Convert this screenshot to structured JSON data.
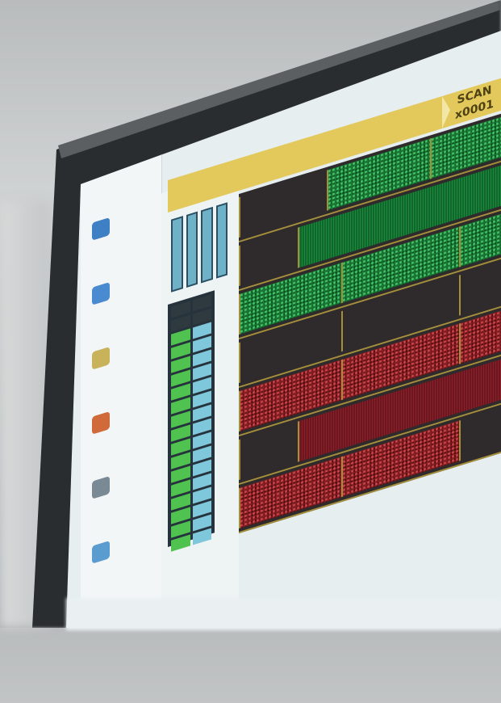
{
  "header": {
    "scan_label": "SCAN",
    "scan_id": "x0001"
  },
  "colors": {
    "header": "#e3c95c",
    "grid_line": "#a48f3c",
    "green": "#1a7a35",
    "red": "#8a1f24",
    "bezel": "#2a2d30"
  },
  "side_icons": [
    "folder-icon",
    "globe-icon",
    "document-icon",
    "chart-icon",
    "settings-icon",
    "image-icon"
  ],
  "level_bars": [
    1,
    1,
    1,
    1
  ],
  "meter_fill": 0.9,
  "lanes": [
    {
      "color": "green",
      "segments": [
        {
          "from": 0,
          "to": 0.3,
          "style": "dark"
        },
        {
          "from": 0.3,
          "to": 0.65,
          "style": "noise"
        },
        {
          "from": 0.65,
          "to": 1,
          "style": "noise"
        }
      ]
    },
    {
      "color": "green",
      "segments": [
        {
          "from": 0,
          "to": 0.2,
          "style": "dark"
        },
        {
          "from": 0.2,
          "to": 1,
          "style": "solid"
        }
      ]
    },
    {
      "color": "green",
      "segments": [
        {
          "from": 0,
          "to": 0.35,
          "style": "noise"
        },
        {
          "from": 0.35,
          "to": 0.75,
          "style": "noise"
        },
        {
          "from": 0.75,
          "to": 1,
          "style": "noise"
        }
      ]
    },
    {
      "color": "green",
      "segments": [
        {
          "from": 0,
          "to": 0.35,
          "style": "dark"
        },
        {
          "from": 0.35,
          "to": 0.75,
          "style": "dark"
        },
        {
          "from": 0.75,
          "to": 1,
          "style": "dark"
        }
      ]
    },
    {
      "color": "red",
      "segments": [
        {
          "from": 0,
          "to": 0.35,
          "style": "noise"
        },
        {
          "from": 0.35,
          "to": 0.75,
          "style": "noise"
        },
        {
          "from": 0.75,
          "to": 1,
          "style": "noise"
        }
      ]
    },
    {
      "color": "red",
      "segments": [
        {
          "from": 0,
          "to": 0.2,
          "style": "dark"
        },
        {
          "from": 0.2,
          "to": 1,
          "style": "solid"
        }
      ]
    },
    {
      "color": "red",
      "segments": [
        {
          "from": 0,
          "to": 0.35,
          "style": "noise"
        },
        {
          "from": 0.35,
          "to": 0.75,
          "style": "noise"
        },
        {
          "from": 0.75,
          "to": 1,
          "style": "dark"
        }
      ]
    }
  ]
}
